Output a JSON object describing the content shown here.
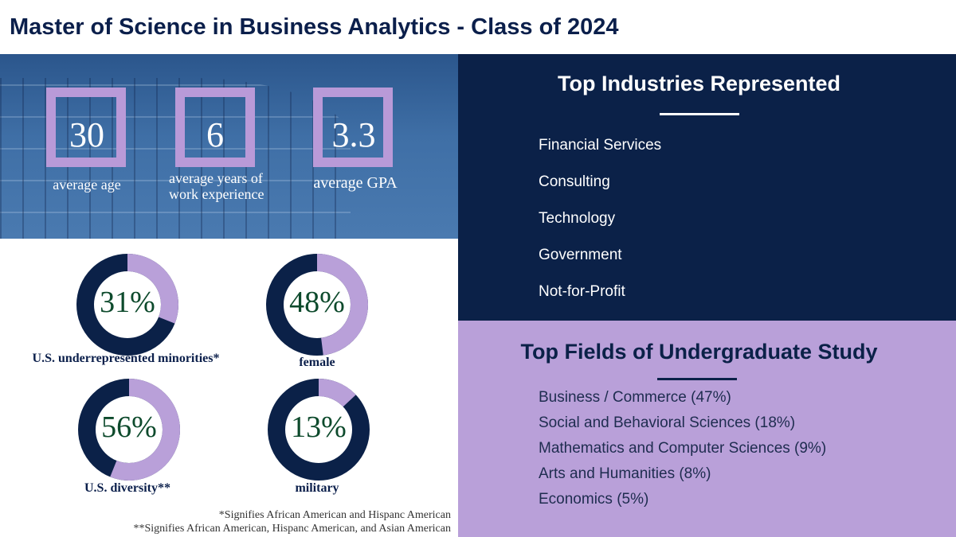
{
  "title": "Master of Science in Business Analytics - Class of 2024",
  "stats": [
    {
      "value": "30",
      "label": "average age"
    },
    {
      "value": "6",
      "label": "average years of work experience"
    },
    {
      "value": "3.3",
      "label": "average GPA"
    }
  ],
  "donuts": [
    {
      "value": 31,
      "text": "31%",
      "label": "U.S. underrepresented minorities*"
    },
    {
      "value": 48,
      "text": "48%",
      "label": "female"
    },
    {
      "value": 56,
      "text": "56%",
      "label": "U.S. diversity**"
    },
    {
      "value": 13,
      "text": "13%",
      "label": "military"
    }
  ],
  "footnotes": [
    "*Signifies African American and Hispanc American",
    "**Signifies African American, Hispanc American, and Asian American"
  ],
  "industries": {
    "heading": "Top Industries Represented",
    "items": [
      "Financial Services",
      "Consulting",
      "Technology",
      "Government",
      "Not-for-Profit"
    ]
  },
  "fields": {
    "heading": "Top Fields of Undergraduate Study",
    "items": [
      "Business / Commerce (47%)",
      "Social and Behavioral Sciences (18%)",
      "Mathematics and Computer Sciences (9%)",
      "Arts and Humanities (8%)",
      "Economics (5%)"
    ]
  },
  "colors": {
    "navy": "#0b2148",
    "purple": "#b9a0d9",
    "green": "#0d4a2c"
  }
}
